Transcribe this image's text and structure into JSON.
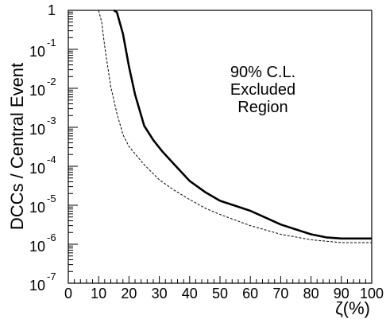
{
  "chart_data": {
    "type": "line",
    "title": "",
    "xlabel": "ζ(%)",
    "ylabel": "DCCs / Central Event",
    "xlim": [
      0,
      100
    ],
    "ylim": [
      1e-07,
      1
    ],
    "y_scale": "log",
    "grid": false,
    "x_ticks": [
      "0",
      "10",
      "20",
      "30",
      "40",
      "50",
      "60",
      "70",
      "80",
      "90",
      "100"
    ],
    "y_ticks": [
      {
        "base": "1",
        "exp": ""
      },
      {
        "base": "10",
        "exp": "-1"
      },
      {
        "base": "10",
        "exp": "-2"
      },
      {
        "base": "10",
        "exp": "-3"
      },
      {
        "base": "10",
        "exp": "-4"
      },
      {
        "base": "10",
        "exp": "-5"
      },
      {
        "base": "10",
        "exp": "-6"
      },
      {
        "base": "10",
        "exp": "-7"
      }
    ],
    "annotation": [
      "90% C.L.",
      "Excluded",
      "Region"
    ],
    "series": [
      {
        "style": "solid",
        "color": "#000000",
        "x": [
          15,
          16,
          18,
          20,
          22,
          25,
          28,
          31,
          35,
          40,
          45,
          50,
          55,
          60,
          65,
          70,
          75,
          80,
          85,
          90,
          95,
          100
        ],
        "y": [
          1,
          0.9,
          0.25,
          0.036,
          0.007,
          0.0011,
          0.00047,
          0.00024,
          0.00011,
          4.2e-05,
          2.2e-05,
          1.3e-05,
          9.7e-06,
          7.2e-06,
          4.8e-06,
          3.2e-06,
          2.4e-06,
          1.8e-06,
          1.5e-06,
          1.4e-06,
          1.4e-06,
          1.4e-06
        ]
      },
      {
        "style": "dashed",
        "color": "#000000",
        "x": [
          10,
          11,
          12,
          13,
          14,
          16,
          18,
          20,
          25,
          30,
          35,
          40,
          45,
          50,
          60,
          70,
          80,
          90,
          100
        ],
        "y": [
          1,
          0.5,
          0.12,
          0.035,
          0.011,
          0.0023,
          0.00065,
          0.00032,
          0.00011,
          4.5e-05,
          2.4e-05,
          1.4e-05,
          8.5e-06,
          5.8e-06,
          3e-06,
          1.8e-06,
          1.3e-06,
          1.1e-06,
          1.1e-06
        ]
      }
    ]
  }
}
